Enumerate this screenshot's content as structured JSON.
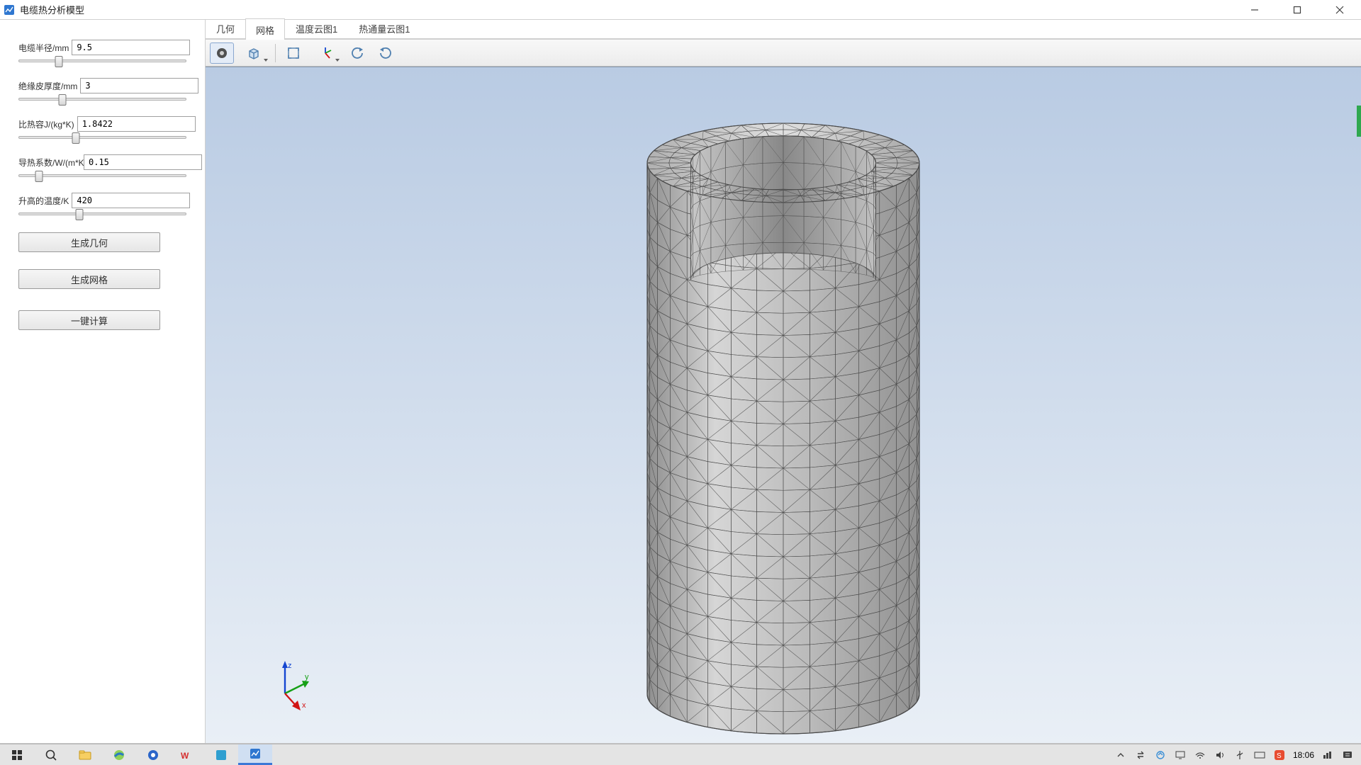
{
  "window": {
    "title": "电缆热分析模型",
    "icon_color": "#2f77d0"
  },
  "sidebar": {
    "params": [
      {
        "label": "电缆半径/mm",
        "value": "9.5",
        "slider_pct": 24
      },
      {
        "label": "绝缘皮厚度/mm",
        "value": "3",
        "slider_pct": 26
      },
      {
        "label": "比热容J/(kg*K)",
        "value": "1.8422",
        "slider_pct": 34
      },
      {
        "label": "导热系数/W/(m*K)",
        "value": "0.15",
        "slider_pct": 12
      },
      {
        "label": "升高的温度/K",
        "value": "420",
        "slider_pct": 36
      }
    ],
    "buttons": [
      {
        "label": "生成几何"
      },
      {
        "label": "生成网格"
      },
      {
        "label": "一键计算"
      }
    ]
  },
  "tabs": {
    "items": [
      {
        "label": "几何"
      },
      {
        "label": "网格"
      },
      {
        "label": "温度云图1"
      },
      {
        "label": "热通量云图1"
      }
    ],
    "active_index": 1
  },
  "toolbar": {
    "items": [
      {
        "name": "render-mode-icon",
        "active": true,
        "dropdown": false
      },
      {
        "name": "box-cube-icon",
        "dropdown": true
      },
      {
        "sep": true
      },
      {
        "name": "fit-view-icon"
      },
      {
        "name": "orientation-axes-icon",
        "dropdown": true
      },
      {
        "name": "rotate-ccw-icon"
      },
      {
        "name": "rotate-cw-icon"
      }
    ]
  },
  "viewport": {
    "bg_top": "#b9cbe3",
    "bg_bottom": "#e9eff6",
    "mesh_fill": "#c9c9c9",
    "mesh_stroke": "#4a4a4a",
    "triad": {
      "x_color": "#d11414",
      "y_color": "#16a016",
      "z_color": "#1446d1",
      "x_label": "x",
      "y_label": "y",
      "z_label": "z"
    }
  },
  "taskbar": {
    "tray": {
      "clock": "18:06"
    }
  }
}
